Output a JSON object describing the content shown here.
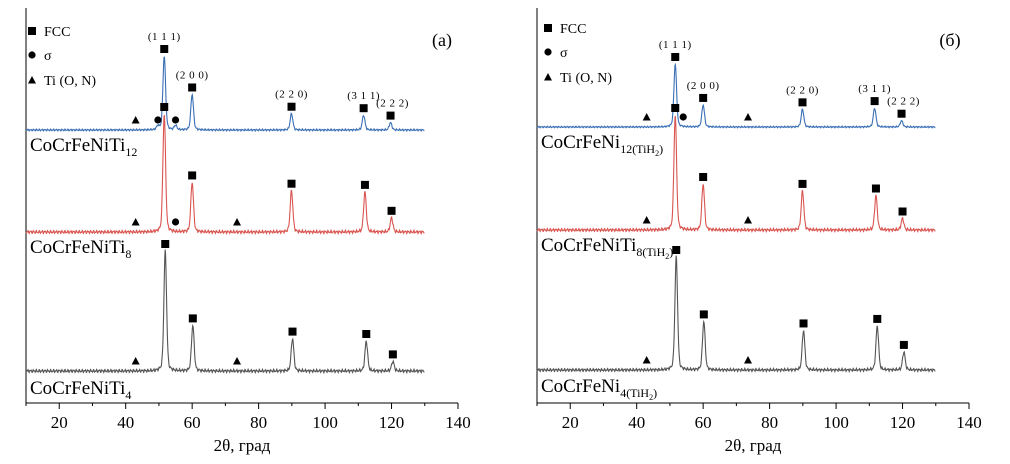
{
  "chart_data": [
    {
      "type": "line",
      "panel_label": "(а)",
      "xlabel": "2θ, град",
      "xlim": [
        10,
        140
      ],
      "xticks": [
        20,
        40,
        60,
        80,
        100,
        120,
        140
      ],
      "legend": [
        {
          "marker": "square",
          "label": "FCC"
        },
        {
          "marker": "circle",
          "label": "σ"
        },
        {
          "marker": "triangle",
          "label": "Ti (O, N)"
        }
      ],
      "series": [
        {
          "label_main": "CoCrFeNiTi",
          "label_sub": "12",
          "color": "#3a6fb5",
          "peaks": [
            {
              "x": 51.6,
              "h": 1.0
            },
            {
              "x": 60.0,
              "h": 0.48
            },
            {
              "x": 89.9,
              "h": 0.22
            },
            {
              "x": 111.6,
              "h": 0.2
            },
            {
              "x": 119.7,
              "h": 0.1
            },
            {
              "x": 49.7,
              "h": 0.05
            },
            {
              "x": 55.0,
              "h": 0.06
            }
          ],
          "markers": [
            {
              "x": 51.6,
              "m": "square"
            },
            {
              "x": 60.0,
              "m": "square"
            },
            {
              "x": 89.9,
              "m": "square"
            },
            {
              "x": 111.6,
              "m": "square"
            },
            {
              "x": 119.7,
              "m": "square"
            },
            {
              "x": 49.7,
              "m": "circle"
            },
            {
              "x": 55.0,
              "m": "circle"
            },
            {
              "x": 43.0,
              "m": "triangle"
            }
          ],
          "hkl": [
            {
              "x": 51.6,
              "text": "(1 1 1)"
            },
            {
              "x": 60.0,
              "text": "(2 0 0)"
            },
            {
              "x": 89.9,
              "text": "(2 2 0)"
            },
            {
              "x": 111.6,
              "text": "(3 1 1)"
            },
            {
              "x": 120.3,
              "text": "(2 2 2)"
            }
          ]
        },
        {
          "label_main": "CoCrFeNiTi",
          "label_sub": "8",
          "color": "#d95550",
          "peaks": [
            {
              "x": 51.6,
              "h": 1.0
            },
            {
              "x": 60.0,
              "h": 0.42
            },
            {
              "x": 89.9,
              "h": 0.35
            },
            {
              "x": 112.0,
              "h": 0.34
            },
            {
              "x": 120.0,
              "h": 0.12
            }
          ],
          "markers": [
            {
              "x": 51.6,
              "m": "square"
            },
            {
              "x": 60.0,
              "m": "square"
            },
            {
              "x": 89.9,
              "m": "square"
            },
            {
              "x": 112.0,
              "m": "square"
            },
            {
              "x": 120.0,
              "m": "square"
            },
            {
              "x": 55.0,
              "m": "circle"
            },
            {
              "x": 43.0,
              "m": "triangle"
            },
            {
              "x": 73.5,
              "m": "triangle"
            }
          ]
        },
        {
          "label_main": "CoCrFeNiTi",
          "label_sub": "4",
          "color": "#555555",
          "peaks": [
            {
              "x": 51.9,
              "h": 1.0
            },
            {
              "x": 60.2,
              "h": 0.38
            },
            {
              "x": 90.2,
              "h": 0.27
            },
            {
              "x": 112.4,
              "h": 0.25
            },
            {
              "x": 120.4,
              "h": 0.08
            }
          ],
          "markers": [
            {
              "x": 51.9,
              "m": "square"
            },
            {
              "x": 60.2,
              "m": "square"
            },
            {
              "x": 90.2,
              "m": "square"
            },
            {
              "x": 112.4,
              "m": "square"
            },
            {
              "x": 120.4,
              "m": "square"
            },
            {
              "x": 43.0,
              "m": "triangle"
            },
            {
              "x": 73.5,
              "m": "triangle"
            }
          ]
        }
      ]
    },
    {
      "type": "line",
      "panel_label": "(б)",
      "xlabel": "2θ, град",
      "xlim": [
        10,
        140
      ],
      "xticks": [
        20,
        40,
        60,
        80,
        100,
        120,
        140
      ],
      "legend": [
        {
          "marker": "square",
          "label": "FCC"
        },
        {
          "marker": "circle",
          "label": "σ"
        },
        {
          "marker": "triangle",
          "label": "Ti (O, N)"
        }
      ],
      "series": [
        {
          "label_main": "CoCrFeNi",
          "label_sub": "12(TiH",
          "label_sub2": "2",
          "label_sub_close": ")",
          "color": "#3a6fb5",
          "peaks": [
            {
              "x": 51.6,
              "h": 1.0
            },
            {
              "x": 60.0,
              "h": 0.35
            },
            {
              "x": 89.9,
              "h": 0.28
            },
            {
              "x": 111.6,
              "h": 0.3
            },
            {
              "x": 119.7,
              "h": 0.1
            }
          ],
          "markers": [
            {
              "x": 51.6,
              "m": "square"
            },
            {
              "x": 60.0,
              "m": "square"
            },
            {
              "x": 89.9,
              "m": "square"
            },
            {
              "x": 111.6,
              "m": "square"
            },
            {
              "x": 119.7,
              "m": "square"
            },
            {
              "x": 54.0,
              "m": "circle"
            },
            {
              "x": 43.0,
              "m": "triangle"
            },
            {
              "x": 73.5,
              "m": "triangle"
            }
          ],
          "hkl": [
            {
              "x": 51.6,
              "text": "(1 1 1)"
            },
            {
              "x": 60.0,
              "text": "(2 0 0)"
            },
            {
              "x": 89.9,
              "text": "(2 2 0)"
            },
            {
              "x": 111.6,
              "text": "(3 1 1)"
            },
            {
              "x": 120.3,
              "text": "(2 2 2)"
            }
          ]
        },
        {
          "label_main": "CoCrFeNiTi",
          "label_sub": "8(TiH",
          "label_sub2": "2",
          "label_sub_close": ")",
          "color": "#d95550",
          "peaks": [
            {
              "x": 51.6,
              "h": 1.0
            },
            {
              "x": 60.0,
              "h": 0.4
            },
            {
              "x": 89.9,
              "h": 0.34
            },
            {
              "x": 112.0,
              "h": 0.3
            },
            {
              "x": 120.0,
              "h": 0.1
            }
          ],
          "markers": [
            {
              "x": 51.6,
              "m": "square"
            },
            {
              "x": 60.0,
              "m": "square"
            },
            {
              "x": 89.9,
              "m": "square"
            },
            {
              "x": 112.0,
              "m": "square"
            },
            {
              "x": 120.0,
              "m": "square"
            },
            {
              "x": 43.0,
              "m": "triangle"
            },
            {
              "x": 73.5,
              "m": "triangle"
            }
          ]
        },
        {
          "label_main": "CoCrFeNi",
          "label_sub": "4(TiH",
          "label_sub2": "2",
          "label_sub_close": ")",
          "color": "#555555",
          "peaks": [
            {
              "x": 51.9,
              "h": 1.0
            },
            {
              "x": 60.2,
              "h": 0.43
            },
            {
              "x": 90.2,
              "h": 0.35
            },
            {
              "x": 112.4,
              "h": 0.39
            },
            {
              "x": 120.4,
              "h": 0.16
            }
          ],
          "markers": [
            {
              "x": 51.9,
              "m": "square"
            },
            {
              "x": 60.2,
              "m": "square"
            },
            {
              "x": 90.2,
              "m": "square"
            },
            {
              "x": 112.4,
              "m": "square"
            },
            {
              "x": 120.4,
              "m": "square"
            },
            {
              "x": 43.0,
              "m": "triangle"
            },
            {
              "x": 73.5,
              "m": "triangle"
            }
          ]
        }
      ]
    }
  ]
}
